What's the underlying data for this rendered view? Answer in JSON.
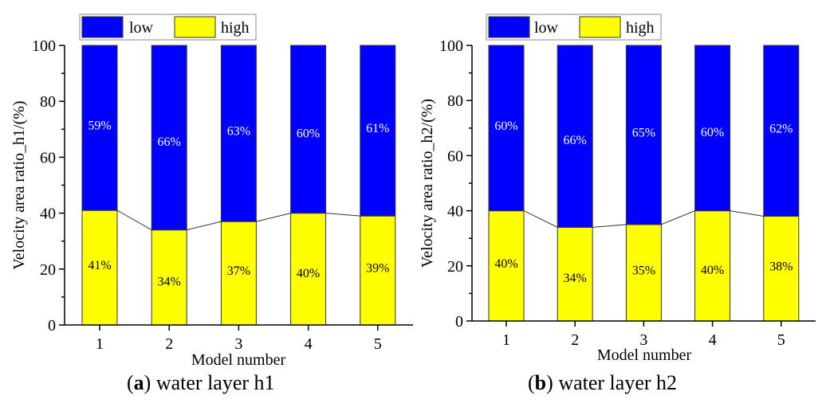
{
  "chart_data": [
    {
      "type": "bar",
      "stacked": true,
      "title": "",
      "caption_letter": "a",
      "caption_text": " water layer h1",
      "xlabel": "Model number",
      "ylabel": "Velocity area ratio_h1/(%)",
      "categories": [
        "1",
        "2",
        "3",
        "4",
        "5"
      ],
      "ylim": [
        0,
        100
      ],
      "yticks": [
        0,
        20,
        40,
        60,
        80,
        100
      ],
      "legend": [
        "low",
        "high"
      ],
      "legend_position": "top",
      "connector_line": "connects tops of high segments",
      "series": [
        {
          "name": "high",
          "color": "#ffff00",
          "label_color": "#000000",
          "values": [
            41,
            34,
            37,
            40,
            39
          ],
          "labels": [
            "41%",
            "34%",
            "37%",
            "40%",
            "39%"
          ]
        },
        {
          "name": "low",
          "color": "#0000ff",
          "label_color": "#ffffff",
          "values": [
            59,
            66,
            63,
            60,
            61
          ],
          "labels": [
            "59%",
            "66%",
            "63%",
            "60%",
            "61%"
          ]
        }
      ]
    },
    {
      "type": "bar",
      "stacked": true,
      "title": "",
      "caption_letter": "b",
      "caption_text": " water layer h2",
      "xlabel": "Model number",
      "ylabel": "Velocity area ratio_h2/(%)",
      "categories": [
        "1",
        "2",
        "3",
        "4",
        "5"
      ],
      "ylim": [
        0,
        100
      ],
      "yticks": [
        0,
        20,
        40,
        60,
        80,
        100
      ],
      "legend": [
        "low",
        "high"
      ],
      "legend_position": "top",
      "connector_line": "connects tops of high segments",
      "series": [
        {
          "name": "high",
          "color": "#ffff00",
          "label_color": "#000000",
          "values": [
            40,
            34,
            35,
            40,
            38
          ],
          "labels": [
            "40%",
            "34%",
            "35%",
            "40%",
            "38%"
          ]
        },
        {
          "name": "low",
          "color": "#0000ff",
          "label_color": "#ffffff",
          "values": [
            60,
            66,
            65,
            60,
            62
          ],
          "labels": [
            "60%",
            "66%",
            "65%",
            "60%",
            "62%"
          ]
        }
      ]
    }
  ]
}
